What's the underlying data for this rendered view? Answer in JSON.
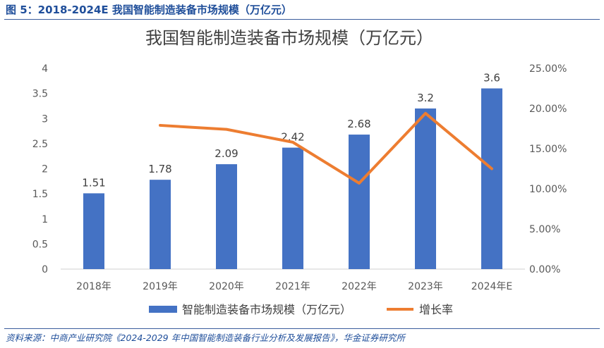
{
  "figure": {
    "caption": "图 5：2018-2024E 我国智能制造装备市场规模（万亿元）",
    "source": "资料来源：中商产业研究院《2024-2029 年中国智能制造装备行业分析及发展报告》，华金证券研究所"
  },
  "chart_data": {
    "type": "bar",
    "title": "我国智能制造装备市场规模（万亿元）",
    "categories": [
      "2018年",
      "2019年",
      "2020年",
      "2021年",
      "2022年",
      "2023年",
      "2024年E"
    ],
    "series": [
      {
        "name": "智能制造装备市场规模（万亿元）",
        "type": "bar",
        "axis": "left",
        "values": [
          1.51,
          1.78,
          2.09,
          2.42,
          2.68,
          3.2,
          3.6
        ],
        "labels": [
          "1.51",
          "1.78",
          "2.09",
          "2.42",
          "2.68",
          "3.2",
          "3.6"
        ],
        "color": "#4472c4"
      },
      {
        "name": "增长率",
        "type": "line",
        "axis": "right",
        "values": [
          null,
          17.9,
          17.4,
          15.8,
          10.7,
          19.4,
          12.5
        ],
        "color": "#ed7d31"
      }
    ],
    "y_left": {
      "min": 0,
      "max": 4,
      "ticks": [
        "0",
        "0.5",
        "1",
        "1.5",
        "2",
        "2.5",
        "3",
        "3.5",
        "4"
      ]
    },
    "y_right": {
      "min": 0,
      "max": 25,
      "ticks": [
        "0.00%",
        "5.00%",
        "10.00%",
        "15.00%",
        "20.00%",
        "25.00%"
      ]
    },
    "grid": false,
    "legend_position": "bottom"
  }
}
